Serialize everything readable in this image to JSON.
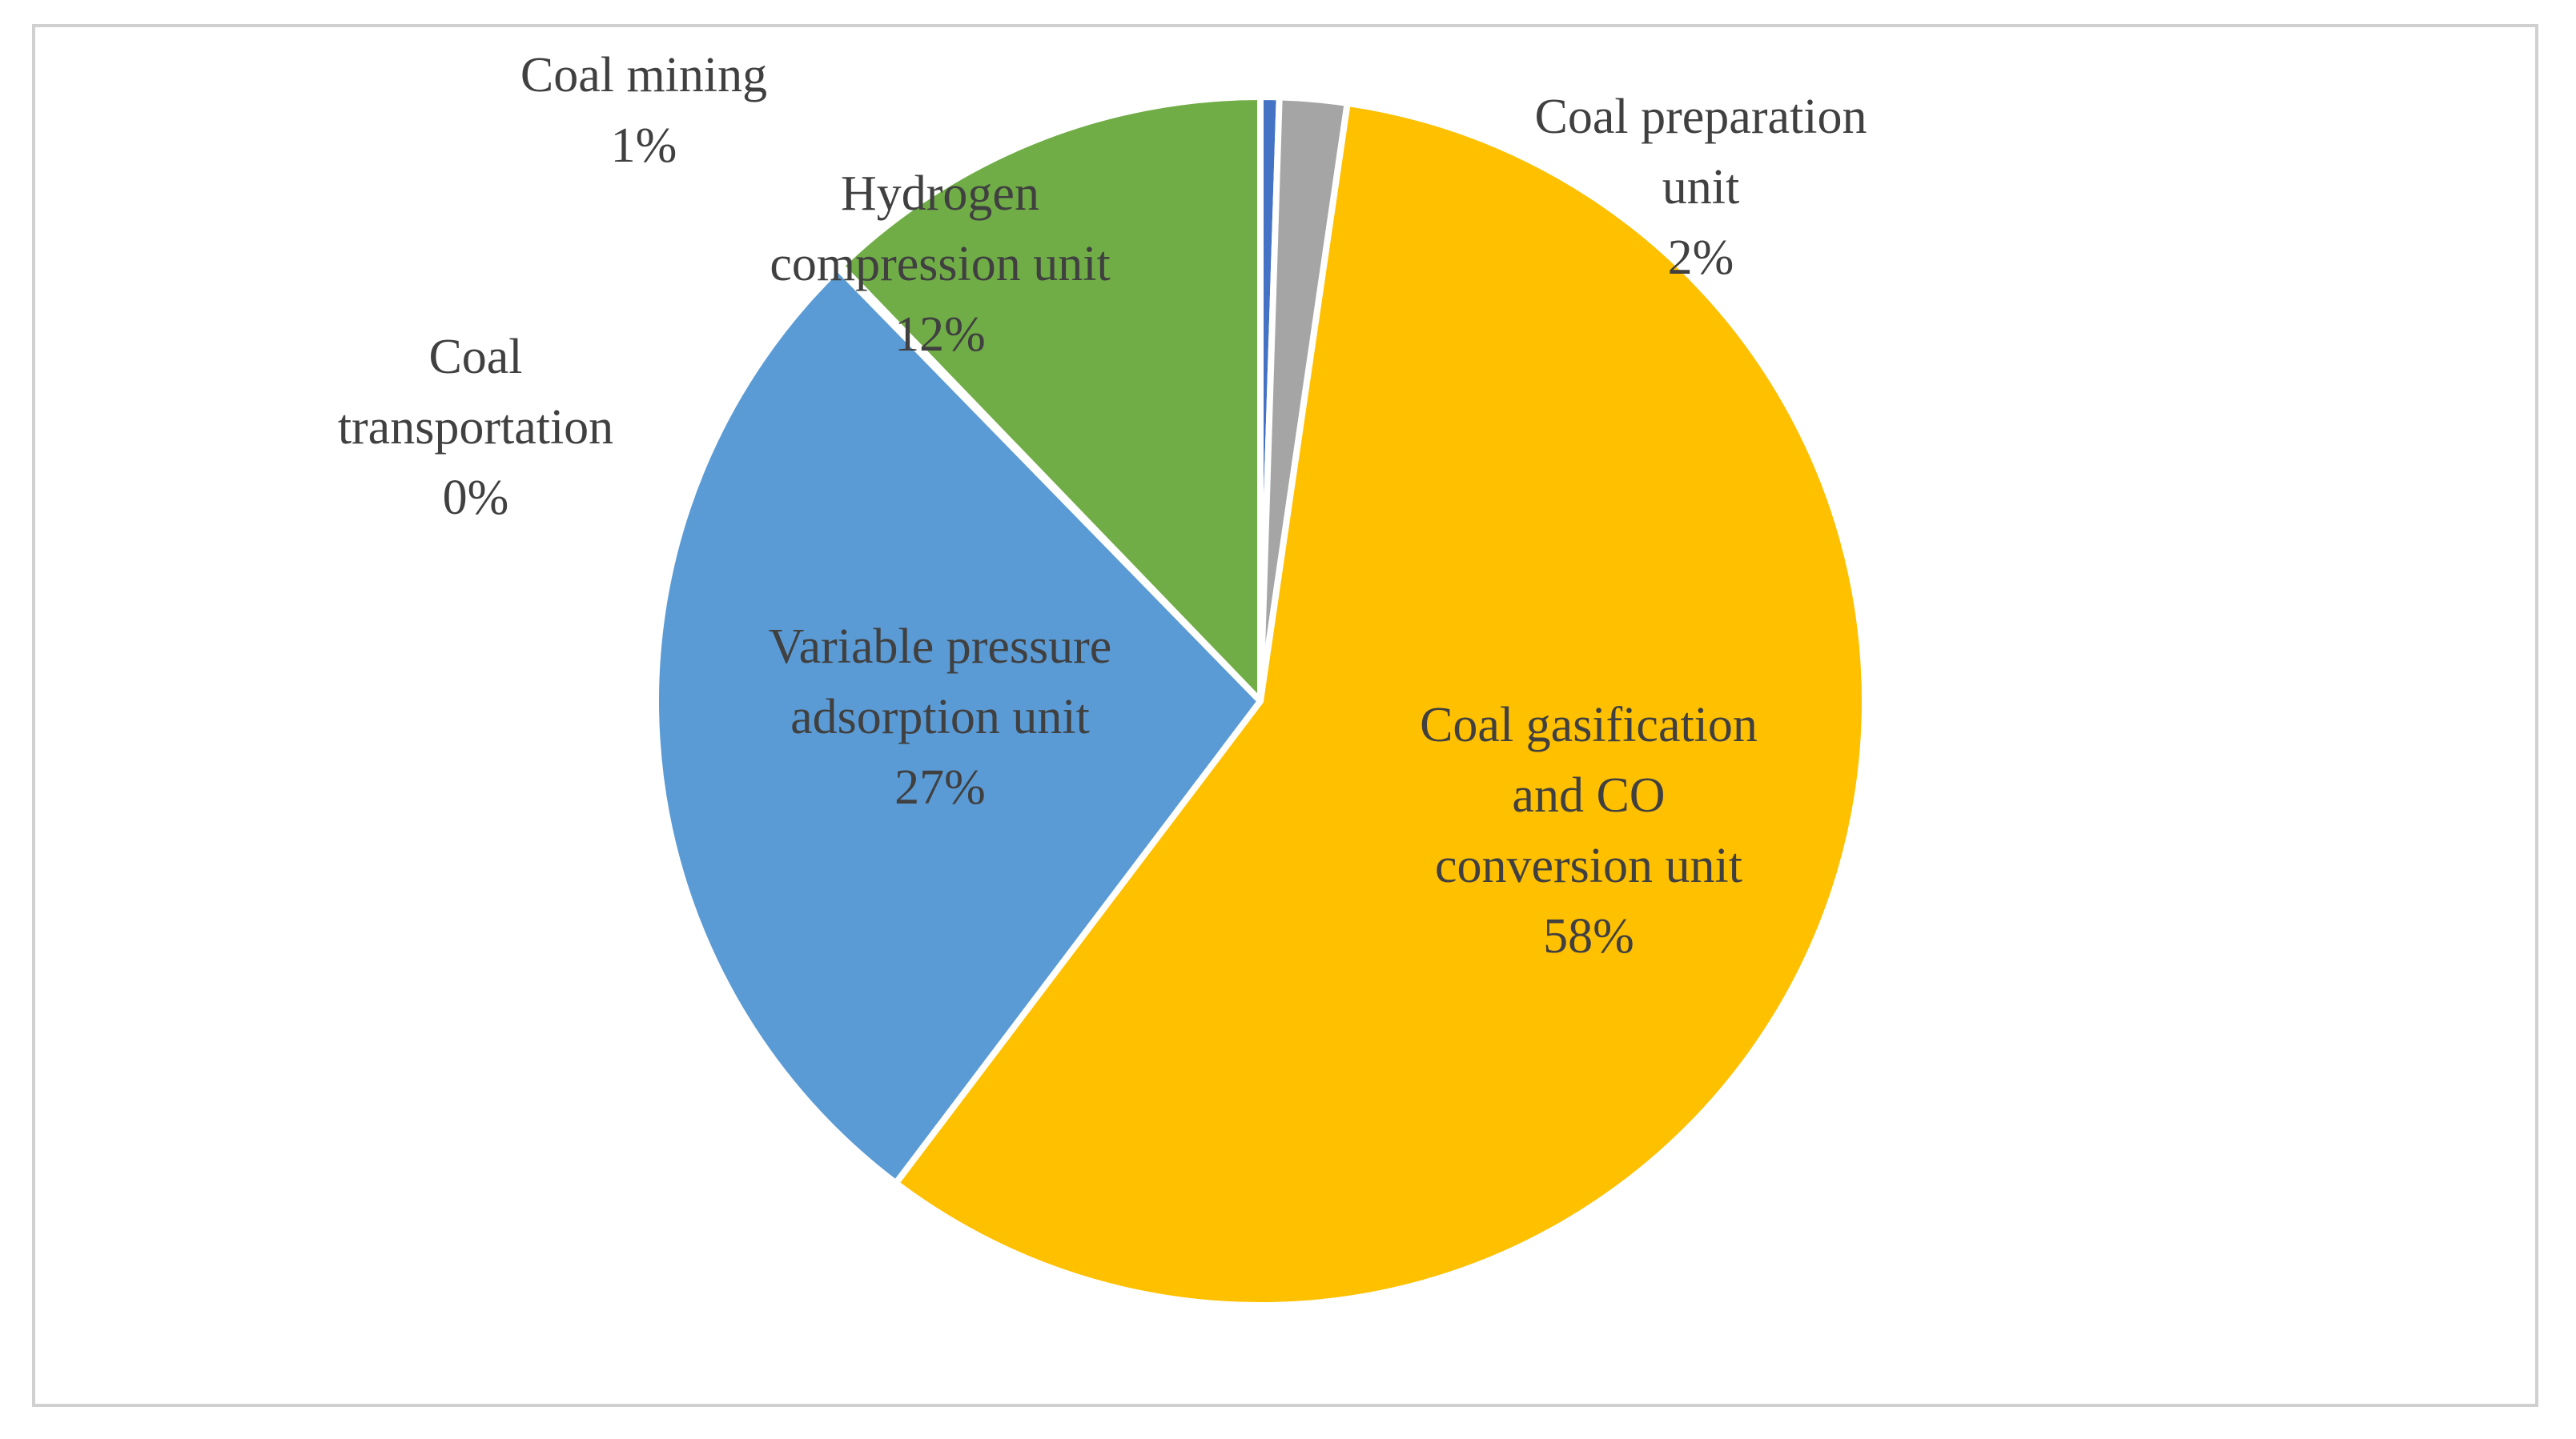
{
  "chart_data": {
    "type": "pie",
    "title": "",
    "start_angle_deg": 0,
    "direction": "clockwise",
    "slices": [
      {
        "name": "Coal mining",
        "value": 0.5,
        "display": "1%",
        "color": "#4472c4"
      },
      {
        "name": "Coal preparation unit",
        "value": 1.8,
        "display": "2%",
        "color": "#a5a5a5"
      },
      {
        "name": "Coal gasification and CO conversion unit",
        "value": 58.0,
        "display": "58%",
        "color": "#ffc000"
      },
      {
        "name": "Variable pressure adsorption unit",
        "value": 27.4,
        "display": "27%",
        "color": "#5b9bd5"
      },
      {
        "name": "Coal transportation",
        "value": 0.1,
        "display": "0%",
        "color": "#264478"
      },
      {
        "name": "Hydrogen compression unit",
        "value": 12.2,
        "display": "12%",
        "color": "#70ad47"
      }
    ],
    "labels": [
      {
        "lines": [
          "Coal mining",
          "1%"
        ]
      },
      {
        "lines": [
          "Coal preparation",
          "unit",
          "2%"
        ]
      },
      {
        "lines": [
          "Coal  gasification",
          "and CO",
          "conversion unit",
          "58%"
        ]
      },
      {
        "lines": [
          "Variable pressure",
          "adsorption unit",
          "27%"
        ]
      },
      {
        "lines": [
          "Coal",
          "transportation",
          "0%"
        ]
      },
      {
        "lines": [
          "Hydrogen",
          "compression unit",
          "12%"
        ]
      }
    ]
  }
}
